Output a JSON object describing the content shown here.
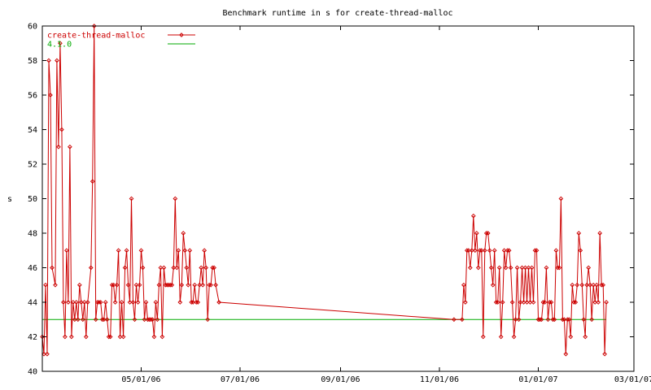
{
  "chart_data": {
    "type": "line",
    "title": "Benchmark runtime in s for create-thread-malloc",
    "xlabel": "",
    "ylabel": "s",
    "x_type": "date",
    "xlim": [
      "2006-03-01",
      "2007-03-01"
    ],
    "ylim": [
      40,
      60
    ],
    "y_ticks": [
      40,
      42,
      44,
      46,
      48,
      50,
      52,
      54,
      56,
      58,
      60
    ],
    "x_ticks": [
      {
        "date": "2006-05-01",
        "label": "05/01/06"
      },
      {
        "date": "2006-07-01",
        "label": "07/01/06"
      },
      {
        "date": "2006-09-01",
        "label": "09/01/06"
      },
      {
        "date": "2006-11-01",
        "label": "11/01/06"
      },
      {
        "date": "2007-01-01",
        "label": "01/01/07"
      },
      {
        "date": "2007-03-01",
        "label": "03/01/07"
      }
    ],
    "grid": false,
    "legend": "top-left",
    "series": [
      {
        "name": "create-thread-malloc",
        "color": "#cc0000",
        "marker": "diamond",
        "points": [
          [
            "2006-03-01",
            42
          ],
          [
            "2006-03-02",
            41
          ],
          [
            "2006-03-03",
            45
          ],
          [
            "2006-03-04",
            41
          ],
          [
            "2006-03-05",
            58
          ],
          [
            "2006-03-06",
            56
          ],
          [
            "2006-03-07",
            46
          ],
          [
            "2006-03-09",
            45
          ],
          [
            "2006-03-10",
            58
          ],
          [
            "2006-03-11",
            53
          ],
          [
            "2006-03-12",
            59
          ],
          [
            "2006-03-13",
            54
          ],
          [
            "2006-03-14",
            44
          ],
          [
            "2006-03-15",
            42
          ],
          [
            "2006-03-16",
            47
          ],
          [
            "2006-03-17",
            44
          ],
          [
            "2006-03-18",
            53
          ],
          [
            "2006-03-19",
            42
          ],
          [
            "2006-03-20",
            44
          ],
          [
            "2006-03-21",
            43
          ],
          [
            "2006-03-22",
            44
          ],
          [
            "2006-03-23",
            43
          ],
          [
            "2006-03-24",
            45
          ],
          [
            "2006-03-25",
            44
          ],
          [
            "2006-03-26",
            43
          ],
          [
            "2006-03-27",
            44
          ],
          [
            "2006-03-28",
            42
          ],
          [
            "2006-03-29",
            44
          ],
          [
            "2006-03-31",
            46
          ],
          [
            "2006-04-01",
            51
          ],
          [
            "2006-04-02",
            60
          ],
          [
            "2006-04-03",
            43
          ],
          [
            "2006-04-04",
            44
          ],
          [
            "2006-04-05",
            44
          ],
          [
            "2006-04-06",
            44
          ],
          [
            "2006-04-07",
            43
          ],
          [
            "2006-04-08",
            43
          ],
          [
            "2006-04-09",
            44
          ],
          [
            "2006-04-10",
            43
          ],
          [
            "2006-04-11",
            42
          ],
          [
            "2006-04-12",
            42
          ],
          [
            "2006-04-13",
            45
          ],
          [
            "2006-04-14",
            45
          ],
          [
            "2006-04-15",
            44
          ],
          [
            "2006-04-16",
            45
          ],
          [
            "2006-04-17",
            47
          ],
          [
            "2006-04-18",
            42
          ],
          [
            "2006-04-19",
            44
          ],
          [
            "2006-04-20",
            42
          ],
          [
            "2006-04-21",
            46
          ],
          [
            "2006-04-22",
            47
          ],
          [
            "2006-04-23",
            45
          ],
          [
            "2006-04-24",
            44
          ],
          [
            "2006-04-25",
            50
          ],
          [
            "2006-04-26",
            44
          ],
          [
            "2006-04-27",
            43
          ],
          [
            "2006-04-28",
            45
          ],
          [
            "2006-04-29",
            44
          ],
          [
            "2006-04-30",
            45
          ],
          [
            "2006-05-01",
            47
          ],
          [
            "2006-05-02",
            46
          ],
          [
            "2006-05-03",
            43
          ],
          [
            "2006-05-04",
            44
          ],
          [
            "2006-05-05",
            43
          ],
          [
            "2006-05-06",
            43
          ],
          [
            "2006-05-07",
            43
          ],
          [
            "2006-05-08",
            43
          ],
          [
            "2006-05-09",
            42
          ],
          [
            "2006-05-10",
            44
          ],
          [
            "2006-05-11",
            43
          ],
          [
            "2006-05-12",
            45
          ],
          [
            "2006-05-13",
            46
          ],
          [
            "2006-05-14",
            42
          ],
          [
            "2006-05-15",
            46
          ],
          [
            "2006-05-16",
            45
          ],
          [
            "2006-05-17",
            45
          ],
          [
            "2006-05-18",
            45
          ],
          [
            "2006-05-19",
            45
          ],
          [
            "2006-05-20",
            45
          ],
          [
            "2006-05-21",
            46
          ],
          [
            "2006-05-22",
            50
          ],
          [
            "2006-05-23",
            46
          ],
          [
            "2006-05-24",
            47
          ],
          [
            "2006-05-25",
            44
          ],
          [
            "2006-05-26",
            45
          ],
          [
            "2006-05-27",
            48
          ],
          [
            "2006-05-28",
            47
          ],
          [
            "2006-05-29",
            46
          ],
          [
            "2006-05-30",
            45
          ],
          [
            "2006-05-31",
            47
          ],
          [
            "2006-06-01",
            44
          ],
          [
            "2006-06-02",
            44
          ],
          [
            "2006-06-03",
            45
          ],
          [
            "2006-06-04",
            44
          ],
          [
            "2006-06-05",
            44
          ],
          [
            "2006-06-06",
            45
          ],
          [
            "2006-06-07",
            46
          ],
          [
            "2006-06-08",
            45
          ],
          [
            "2006-06-09",
            47
          ],
          [
            "2006-06-10",
            46
          ],
          [
            "2006-06-11",
            43
          ],
          [
            "2006-06-12",
            45
          ],
          [
            "2006-06-13",
            45
          ],
          [
            "2006-06-14",
            46
          ],
          [
            "2006-06-15",
            46
          ],
          [
            "2006-06-16",
            45
          ],
          [
            "2006-06-18",
            44
          ],
          [
            "2006-11-10",
            43
          ],
          [
            "2006-11-15",
            43
          ],
          [
            "2006-11-16",
            45
          ],
          [
            "2006-11-17",
            44
          ],
          [
            "2006-11-18",
            47
          ],
          [
            "2006-11-19",
            47
          ],
          [
            "2006-11-20",
            46
          ],
          [
            "2006-11-21",
            47
          ],
          [
            "2006-11-22",
            49
          ],
          [
            "2006-11-23",
            47
          ],
          [
            "2006-11-24",
            48
          ],
          [
            "2006-11-25",
            46
          ],
          [
            "2006-11-26",
            47
          ],
          [
            "2006-11-27",
            47
          ],
          [
            "2006-11-28",
            42
          ],
          [
            "2006-11-29",
            47
          ],
          [
            "2006-11-30",
            48
          ],
          [
            "2006-12-01",
            48
          ],
          [
            "2006-12-02",
            47
          ],
          [
            "2006-12-03",
            46
          ],
          [
            "2006-12-04",
            45
          ],
          [
            "2006-12-05",
            47
          ],
          [
            "2006-12-06",
            44
          ],
          [
            "2006-12-07",
            44
          ],
          [
            "2006-12-08",
            46
          ],
          [
            "2006-12-09",
            42
          ],
          [
            "2006-12-10",
            44
          ],
          [
            "2006-12-11",
            47
          ],
          [
            "2006-12-12",
            46
          ],
          [
            "2006-12-13",
            47
          ],
          [
            "2006-12-14",
            47
          ],
          [
            "2006-12-15",
            46
          ],
          [
            "2006-12-16",
            44
          ],
          [
            "2006-12-17",
            42
          ],
          [
            "2006-12-18",
            43
          ],
          [
            "2006-12-19",
            46
          ],
          [
            "2006-12-20",
            43
          ],
          [
            "2006-12-21",
            44
          ],
          [
            "2006-12-22",
            46
          ],
          [
            "2006-12-23",
            44
          ],
          [
            "2006-12-24",
            46
          ],
          [
            "2006-12-25",
            44
          ],
          [
            "2006-12-26",
            46
          ],
          [
            "2006-12-27",
            44
          ],
          [
            "2006-12-28",
            46
          ],
          [
            "2006-12-29",
            44
          ],
          [
            "2006-12-30",
            47
          ],
          [
            "2006-12-31",
            47
          ],
          [
            "2007-01-01",
            43
          ],
          [
            "2007-01-02",
            43
          ],
          [
            "2007-01-03",
            43
          ],
          [
            "2007-01-04",
            44
          ],
          [
            "2007-01-05",
            44
          ],
          [
            "2007-01-06",
            46
          ],
          [
            "2007-01-07",
            43
          ],
          [
            "2007-01-08",
            44
          ],
          [
            "2007-01-09",
            44
          ],
          [
            "2007-01-10",
            43
          ],
          [
            "2007-01-11",
            43
          ],
          [
            "2007-01-12",
            47
          ],
          [
            "2007-01-13",
            46
          ],
          [
            "2007-01-14",
            46
          ],
          [
            "2007-01-15",
            50
          ],
          [
            "2007-01-16",
            43
          ],
          [
            "2007-01-17",
            43
          ],
          [
            "2007-01-18",
            41
          ],
          [
            "2007-01-19",
            43
          ],
          [
            "2007-01-20",
            43
          ],
          [
            "2007-01-21",
            42
          ],
          [
            "2007-01-22",
            45
          ],
          [
            "2007-01-23",
            44
          ],
          [
            "2007-01-24",
            44
          ],
          [
            "2007-01-25",
            45
          ],
          [
            "2007-01-26",
            48
          ],
          [
            "2007-01-27",
            47
          ],
          [
            "2007-01-28",
            45
          ],
          [
            "2007-01-29",
            43
          ],
          [
            "2007-01-30",
            42
          ],
          [
            "2007-01-31",
            45
          ],
          [
            "2007-02-01",
            46
          ],
          [
            "2007-02-02",
            45
          ],
          [
            "2007-02-03",
            43
          ],
          [
            "2007-02-04",
            45
          ],
          [
            "2007-02-05",
            44
          ],
          [
            "2007-02-06",
            45
          ],
          [
            "2007-02-07",
            44
          ],
          [
            "2007-02-08",
            48
          ],
          [
            "2007-02-09",
            45
          ],
          [
            "2007-02-10",
            45
          ],
          [
            "2007-02-11",
            41
          ],
          [
            "2007-02-12",
            44
          ]
        ]
      },
      {
        "name": "4.1.0",
        "color": "#00aa00",
        "marker": "none",
        "points": [
          [
            "2006-03-01",
            43
          ],
          [
            "2007-02-12",
            43
          ]
        ]
      }
    ]
  }
}
